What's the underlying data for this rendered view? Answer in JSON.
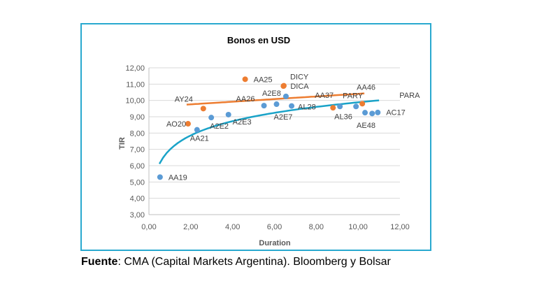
{
  "chart_data": {
    "type": "scatter",
    "title": "Bonos en USD",
    "xlabel": "Duration",
    "ylabel": "TIR",
    "xlim": [
      0,
      12
    ],
    "ylim": [
      3,
      12
    ],
    "x_ticks": [
      "0,00",
      "2,00",
      "4,00",
      "6,00",
      "8,00",
      "10,00",
      "12,00"
    ],
    "y_ticks": [
      "3,00",
      "4,00",
      "5,00",
      "6,00",
      "7,00",
      "8,00",
      "9,00",
      "10,00",
      "11,00",
      "12,00"
    ],
    "grid": "horizontal",
    "series": [
      {
        "color": "#5b9bd5",
        "trendline": {
          "type": "logarithmic",
          "color": "#1aa3c8",
          "x_range": [
            0.5,
            11
          ]
        },
        "points": [
          {
            "label": "AA19",
            "x": 0.53,
            "y": 5.3
          },
          {
            "label": "AA21",
            "x": 2.3,
            "y": 8.2
          },
          {
            "label": "A2E2",
            "x": 2.98,
            "y": 8.95
          },
          {
            "label": "A2E3",
            "x": 3.8,
            "y": 9.13
          },
          {
            "label": "AA26",
            "x": 5.5,
            "y": 9.68
          },
          {
            "label": "A2E7",
            "x": 6.1,
            "y": 9.77
          },
          {
            "label": "A2E8",
            "x": 6.55,
            "y": 10.25
          },
          {
            "label": "AL28",
            "x": 6.82,
            "y": 9.66
          },
          {
            "label": "AL36",
            "x": 9.13,
            "y": 9.63
          },
          {
            "label": "PARY",
            "x": 9.9,
            "y": 9.63
          },
          {
            "label": "AE48",
            "x": 10.33,
            "y": 9.25
          },
          {
            "label": "AC17",
            "x": 10.67,
            "y": 9.2
          },
          {
            "label": "PARA",
            "x": 10.94,
            "y": 9.26
          }
        ]
      },
      {
        "color": "#ed7d31",
        "trendline": {
          "type": "linear",
          "color": "#ed7d31",
          "x_range": [
            1.8,
            10.3
          ]
        },
        "points": [
          {
            "label": "AO20",
            "x": 1.87,
            "y": 8.57
          },
          {
            "label": "AY24",
            "x": 2.6,
            "y": 9.5
          },
          {
            "label": "AA25",
            "x": 4.6,
            "y": 11.3
          },
          {
            "label": "DICY",
            "x": 6.45,
            "y": 10.9
          },
          {
            "label": "DICA",
            "x": 6.43,
            "y": 10.88
          },
          {
            "label": "AA37",
            "x": 8.8,
            "y": 9.55
          },
          {
            "label": "AA46",
            "x": 10.2,
            "y": 9.8
          }
        ]
      }
    ]
  },
  "caption": {
    "bold": "Fuente",
    "text": ": CMA (Capital Markets Argentina). Bloomberg y Bolsar"
  }
}
